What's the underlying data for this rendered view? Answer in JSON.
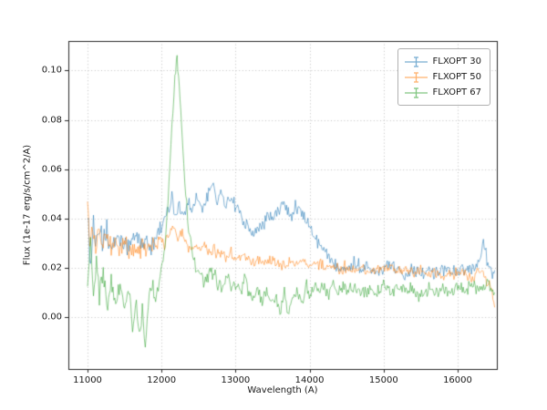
{
  "figure": {
    "background": "#ffffff"
  },
  "chart_data": {
    "type": "line",
    "title": "",
    "xlabel": "Wavelength (A)",
    "ylabel": "Flux (1e-17 erg/s/cm^2/A)",
    "xlim": [
      10741,
      16530
    ],
    "ylim": [
      -0.021,
      0.112
    ],
    "grid": true,
    "grid_style": "dotted",
    "legend_position": "upper right",
    "line_alpha": 0.55,
    "xticks": {
      "values": [
        11000,
        12000,
        13000,
        14000,
        15000,
        16000
      ],
      "labels": [
        "11000",
        "12000",
        "13000",
        "14000",
        "15000",
        "16000"
      ]
    },
    "yticks": {
      "values": [
        0.0,
        0.02,
        0.04,
        0.06,
        0.08,
        0.1
      ],
      "labels": [
        "0.00",
        "0.02",
        "0.04",
        "0.06",
        "0.08",
        "0.10"
      ]
    },
    "series": [
      {
        "name": "FLXOPT 30",
        "color": "#1f77b4",
        "noise": 0.0035,
        "points": [
          [
            11000,
            0.041
          ],
          [
            11040,
            0.022
          ],
          [
            11080,
            0.038
          ],
          [
            11120,
            0.028
          ],
          [
            11160,
            0.035
          ],
          [
            11200,
            0.03
          ],
          [
            11260,
            0.034
          ],
          [
            11320,
            0.028
          ],
          [
            11380,
            0.032
          ],
          [
            11440,
            0.029
          ],
          [
            11500,
            0.031
          ],
          [
            11560,
            0.027
          ],
          [
            11620,
            0.031
          ],
          [
            11680,
            0.034
          ],
          [
            11740,
            0.029
          ],
          [
            11800,
            0.031
          ],
          [
            11860,
            0.028
          ],
          [
            11920,
            0.033
          ],
          [
            11980,
            0.036
          ],
          [
            12040,
            0.04
          ],
          [
            12100,
            0.044
          ],
          [
            12140,
            0.05
          ],
          [
            12180,
            0.04
          ],
          [
            12240,
            0.045
          ],
          [
            12300,
            0.042
          ],
          [
            12360,
            0.046
          ],
          [
            12420,
            0.043
          ],
          [
            12480,
            0.048
          ],
          [
            12540,
            0.044
          ],
          [
            12600,
            0.047
          ],
          [
            12660,
            0.052
          ],
          [
            12700,
            0.055
          ],
          [
            12740,
            0.046
          ],
          [
            12800,
            0.051
          ],
          [
            12860,
            0.045
          ],
          [
            12920,
            0.049
          ],
          [
            12980,
            0.046
          ],
          [
            13040,
            0.043
          ],
          [
            13100,
            0.04
          ],
          [
            13160,
            0.037
          ],
          [
            13220,
            0.035
          ],
          [
            13280,
            0.034
          ],
          [
            13340,
            0.037
          ],
          [
            13400,
            0.039
          ],
          [
            13460,
            0.041
          ],
          [
            13520,
            0.04
          ],
          [
            13580,
            0.043
          ],
          [
            13640,
            0.046
          ],
          [
            13700,
            0.044
          ],
          [
            13760,
            0.042
          ],
          [
            13820,
            0.045
          ],
          [
            13880,
            0.043
          ],
          [
            13940,
            0.04
          ],
          [
            14000,
            0.037
          ],
          [
            14060,
            0.033
          ],
          [
            14120,
            0.03
          ],
          [
            14180,
            0.027
          ],
          [
            14240,
            0.025
          ],
          [
            14300,
            0.023
          ],
          [
            14360,
            0.022
          ],
          [
            14420,
            0.021
          ],
          [
            14500,
            0.02
          ],
          [
            14600,
            0.022
          ],
          [
            14700,
            0.02
          ],
          [
            14800,
            0.021
          ],
          [
            14900,
            0.019
          ],
          [
            15000,
            0.02
          ],
          [
            15100,
            0.021
          ],
          [
            15200,
            0.019
          ],
          [
            15300,
            0.018
          ],
          [
            15400,
            0.02
          ],
          [
            15500,
            0.018
          ],
          [
            15600,
            0.019
          ],
          [
            15700,
            0.018
          ],
          [
            15800,
            0.02
          ],
          [
            15900,
            0.018
          ],
          [
            16000,
            0.019
          ],
          [
            16100,
            0.018
          ],
          [
            16200,
            0.019
          ],
          [
            16300,
            0.024
          ],
          [
            16360,
            0.03
          ],
          [
            16420,
            0.02
          ],
          [
            16470,
            0.015
          ],
          [
            16500,
            0.019
          ]
        ]
      },
      {
        "name": "FLXOPT 50",
        "color": "#ff7f0e",
        "noise": 0.003,
        "points": [
          [
            11000,
            0.05
          ],
          [
            11030,
            0.026
          ],
          [
            11070,
            0.04
          ],
          [
            11110,
            0.027
          ],
          [
            11150,
            0.035
          ],
          [
            11200,
            0.029
          ],
          [
            11260,
            0.033
          ],
          [
            11320,
            0.027
          ],
          [
            11380,
            0.031
          ],
          [
            11440,
            0.027
          ],
          [
            11500,
            0.03
          ],
          [
            11560,
            0.026
          ],
          [
            11620,
            0.029
          ],
          [
            11680,
            0.025
          ],
          [
            11740,
            0.029
          ],
          [
            11800,
            0.026
          ],
          [
            11860,
            0.03
          ],
          [
            11920,
            0.028
          ],
          [
            11980,
            0.032
          ],
          [
            12040,
            0.029
          ],
          [
            12100,
            0.033
          ],
          [
            12160,
            0.036
          ],
          [
            12220,
            0.031
          ],
          [
            12280,
            0.034
          ],
          [
            12340,
            0.029
          ],
          [
            12400,
            0.027
          ],
          [
            12460,
            0.03
          ],
          [
            12520,
            0.027
          ],
          [
            12580,
            0.029
          ],
          [
            12640,
            0.026
          ],
          [
            12700,
            0.028
          ],
          [
            12760,
            0.025
          ],
          [
            12820,
            0.027
          ],
          [
            12880,
            0.024
          ],
          [
            12940,
            0.026
          ],
          [
            13000,
            0.024
          ],
          [
            13100,
            0.025
          ],
          [
            13200,
            0.022
          ],
          [
            13300,
            0.024
          ],
          [
            13400,
            0.022
          ],
          [
            13500,
            0.023
          ],
          [
            13600,
            0.021
          ],
          [
            13700,
            0.022
          ],
          [
            13800,
            0.021
          ],
          [
            13900,
            0.023
          ],
          [
            14000,
            0.021
          ],
          [
            14100,
            0.022
          ],
          [
            14200,
            0.02
          ],
          [
            14300,
            0.021
          ],
          [
            14400,
            0.019
          ],
          [
            14500,
            0.021
          ],
          [
            14600,
            0.019
          ],
          [
            14700,
            0.02
          ],
          [
            14800,
            0.018
          ],
          [
            14900,
            0.02
          ],
          [
            15000,
            0.019
          ],
          [
            15100,
            0.02
          ],
          [
            15200,
            0.018
          ],
          [
            15300,
            0.019
          ],
          [
            15400,
            0.018
          ],
          [
            15500,
            0.019
          ],
          [
            15600,
            0.017
          ],
          [
            15700,
            0.019
          ],
          [
            15800,
            0.017
          ],
          [
            15900,
            0.018
          ],
          [
            16000,
            0.017
          ],
          [
            16100,
            0.018
          ],
          [
            16200,
            0.016
          ],
          [
            16300,
            0.019
          ],
          [
            16380,
            0.015
          ],
          [
            16440,
            0.012
          ],
          [
            16500,
            0.004
          ]
        ]
      },
      {
        "name": "FLXOPT 67",
        "color": "#2ca02c",
        "noise": 0.0035,
        "points": [
          [
            11000,
            0.013
          ],
          [
            11040,
            0.027
          ],
          [
            11080,
            0.006
          ],
          [
            11120,
            0.02
          ],
          [
            11160,
            0.01
          ],
          [
            11200,
            0.017
          ],
          [
            11260,
            0.005
          ],
          [
            11320,
            0.014
          ],
          [
            11380,
            0.004
          ],
          [
            11440,
            0.012
          ],
          [
            11500,
            0.003
          ],
          [
            11560,
            0.01
          ],
          [
            11620,
            -0.004
          ],
          [
            11660,
            0.006
          ],
          [
            11700,
            -0.01
          ],
          [
            11740,
            0.004
          ],
          [
            11780,
            -0.013
          ],
          [
            11820,
            0.006
          ],
          [
            11860,
            0.01
          ],
          [
            11920,
            0.008
          ],
          [
            11980,
            0.015
          ],
          [
            12020,
            0.022
          ],
          [
            12060,
            0.035
          ],
          [
            12100,
            0.055
          ],
          [
            12140,
            0.08
          ],
          [
            12180,
            0.096
          ],
          [
            12210,
            0.104
          ],
          [
            12240,
            0.093
          ],
          [
            12270,
            0.078
          ],
          [
            12300,
            0.062
          ],
          [
            12340,
            0.045
          ],
          [
            12380,
            0.032
          ],
          [
            12420,
            0.026
          ],
          [
            12460,
            0.02
          ],
          [
            12520,
            0.017
          ],
          [
            12580,
            0.014
          ],
          [
            12640,
            0.017
          ],
          [
            12700,
            0.019
          ],
          [
            12760,
            0.013
          ],
          [
            12820,
            0.011
          ],
          [
            12880,
            0.016
          ],
          [
            12940,
            0.012
          ],
          [
            13000,
            0.014
          ],
          [
            13060,
            0.01
          ],
          [
            13120,
            0.015
          ],
          [
            13180,
            0.009
          ],
          [
            13240,
            0.007
          ],
          [
            13300,
            0.011
          ],
          [
            13360,
            0.006
          ],
          [
            13420,
            0.012
          ],
          [
            13480,
            0.005
          ],
          [
            13540,
            0.009
          ],
          [
            13600,
            0.003
          ],
          [
            13660,
            0.009
          ],
          [
            13720,
            0.002
          ],
          [
            13780,
            0.008
          ],
          [
            13840,
            0.011
          ],
          [
            13900,
            0.007
          ],
          [
            13960,
            0.012
          ],
          [
            14020,
            0.009
          ],
          [
            14080,
            0.014
          ],
          [
            14140,
            0.01
          ],
          [
            14200,
            0.013
          ],
          [
            14260,
            0.009
          ],
          [
            14320,
            0.013
          ],
          [
            14380,
            0.01
          ],
          [
            14440,
            0.012
          ],
          [
            14500,
            0.011
          ],
          [
            14600,
            0.013
          ],
          [
            14700,
            0.009
          ],
          [
            14800,
            0.012
          ],
          [
            14900,
            0.01
          ],
          [
            15000,
            0.013
          ],
          [
            15100,
            0.009
          ],
          [
            15200,
            0.012
          ],
          [
            15300,
            0.01
          ],
          [
            15400,
            0.012
          ],
          [
            15500,
            0.008
          ],
          [
            15600,
            0.012
          ],
          [
            15700,
            0.009
          ],
          [
            15800,
            0.013
          ],
          [
            15900,
            0.01
          ],
          [
            16000,
            0.012
          ],
          [
            16100,
            0.01
          ],
          [
            16200,
            0.014
          ],
          [
            16300,
            0.011
          ],
          [
            16400,
            0.015
          ],
          [
            16500,
            0.01
          ]
        ]
      }
    ]
  }
}
